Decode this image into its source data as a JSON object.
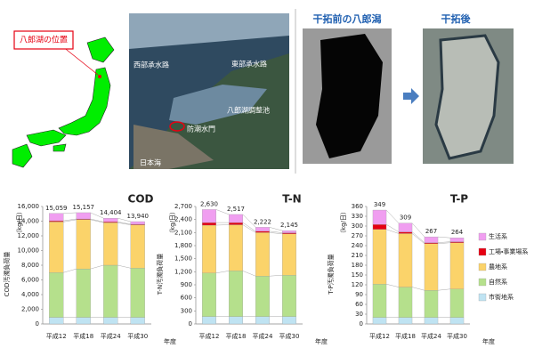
{
  "map": {
    "label": "八郎湖の位置"
  },
  "aerial_photo": {
    "labels": [
      "西部承水路",
      "東部承水路",
      "八郎湖調整池",
      "防潮水門",
      "日本海"
    ]
  },
  "satellite": {
    "before": "干拓前の八郎潟",
    "after": "干拓後"
  },
  "chart_data": [
    {
      "type": "bar",
      "stacked": true,
      "title": "COD",
      "y_label": "COD汚濁負荷量",
      "unit": "（kg/日）",
      "x_label": "年度",
      "categories": [
        "平成12",
        "平成18",
        "平成24",
        "平成30"
      ],
      "series": [
        {
          "color": "#bfe3f2",
          "values": [
            900,
            900,
            900,
            900
          ]
        },
        {
          "color": "#b5e08c",
          "values": [
            6100,
            6600,
            7100,
            6700
          ]
        },
        {
          "color": "#fbd36a",
          "values": [
            6900,
            6700,
            5800,
            5900
          ]
        },
        {
          "color": "#e60012",
          "values": [
            150,
            100,
            100,
            80
          ]
        },
        {
          "color": "#f09ef0",
          "values": [
            1009,
            857,
            504,
            360
          ]
        }
      ],
      "totals": [
        15059,
        15157,
        14404,
        13940
      ],
      "total_labels": [
        "15,059",
        "15,157",
        "14,404",
        "13,940"
      ],
      "ylim": [
        0,
        16000
      ],
      "yticks": [
        0,
        {
          "value": 2000,
          "label": "2,000"
        },
        {
          "value": 4000,
          "label": "4,000"
        },
        {
          "value": 6000,
          "label": "6,000"
        },
        {
          "value": 8000,
          "label": "8,000"
        },
        {
          "value": 10000,
          "label": "10,000"
        },
        {
          "value": 12000,
          "label": "12,000"
        },
        {
          "value": 14000,
          "label": "14,000"
        },
        {
          "value": 16000,
          "label": "16,000"
        }
      ],
      "grid": false,
      "legend": false
    },
    {
      "type": "bar",
      "stacked": true,
      "title": "T-N",
      "y_label": "T-N汚濁負荷量",
      "unit": "（kg/日）",
      "x_label": "年度",
      "categories": [
        "平成12",
        "平成18",
        "平成24",
        "平成30"
      ],
      "series": [
        {
          "color": "#bfe3f2",
          "values": [
            170,
            170,
            170,
            170
          ]
        },
        {
          "color": "#b5e08c",
          "values": [
            1000,
            1050,
            930,
            950
          ]
        },
        {
          "color": "#fbd36a",
          "values": [
            1100,
            1060,
            1000,
            950
          ]
        },
        {
          "color": "#e60012",
          "values": [
            60,
            50,
            30,
            25
          ]
        },
        {
          "color": "#f09ef0",
          "values": [
            300,
            187,
            92,
            50
          ]
        }
      ],
      "totals": [
        2630,
        2517,
        2222,
        2145
      ],
      "total_labels": [
        "2,630",
        "2,517",
        "2,222",
        "2,145"
      ],
      "ylim": [
        0,
        2700
      ],
      "yticks": [
        0,
        300,
        600,
        900,
        {
          "value": 1200,
          "label": "1,200"
        },
        {
          "value": 1500,
          "label": "1,500"
        },
        {
          "value": 1800,
          "label": "1,800"
        },
        {
          "value": 2100,
          "label": "2,100"
        },
        {
          "value": 2400,
          "label": "2,400"
        },
        {
          "value": 2700,
          "label": "2,700"
        }
      ],
      "grid": false,
      "legend": false
    },
    {
      "type": "bar",
      "stacked": true,
      "title": "T-P",
      "y_label": "T-P汚濁負荷量",
      "unit": "（kg/日）",
      "x_label": "年度",
      "categories": [
        "平成12",
        "平成18",
        "平成24",
        "平成30"
      ],
      "series": [
        {
          "name": "市街地系",
          "color": "#bfe3f2",
          "values": [
            20,
            20,
            20,
            20
          ]
        },
        {
          "name": "自然系",
          "color": "#b5e08c",
          "values": [
            102,
            93,
            83,
            87
          ]
        },
        {
          "name": "農地系",
          "color": "#fbd36a",
          "values": [
            168,
            164,
            143,
            142
          ]
        },
        {
          "name": "工場・事業場系",
          "color": "#e60012",
          "values": [
            15,
            5,
            3,
            3
          ]
        },
        {
          "name": "生活系",
          "color": "#f09ef0",
          "values": [
            44,
            27,
            18,
            12
          ]
        }
      ],
      "totals": [
        349,
        309,
        267,
        264
      ],
      "total_labels": [
        "349",
        "309",
        "267",
        "264"
      ],
      "ylim": [
        0,
        360
      ],
      "yticks": [
        0,
        30,
        60,
        90,
        120,
        150,
        180,
        210,
        240,
        270,
        300,
        330,
        360
      ],
      "grid": false,
      "legend": true
    }
  ]
}
